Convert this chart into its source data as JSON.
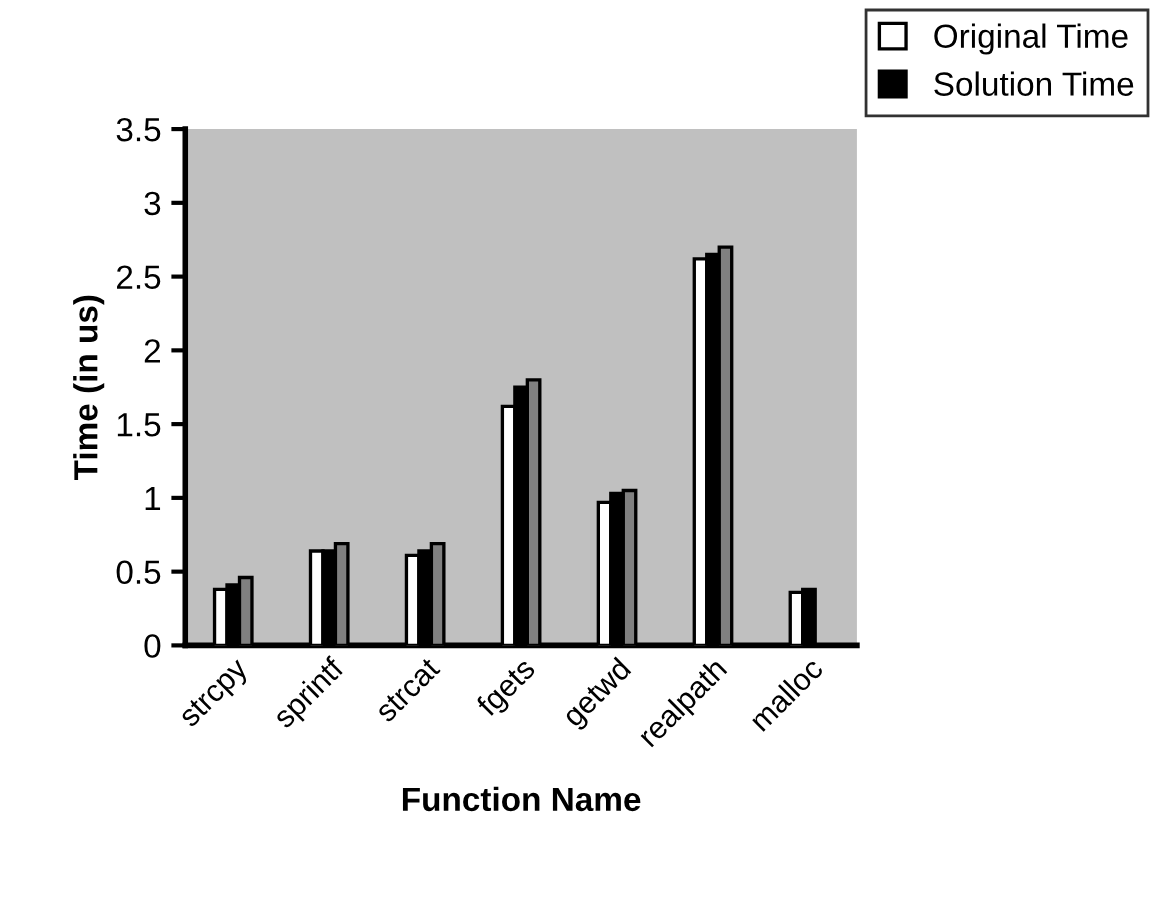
{
  "chart_data": {
    "type": "bar",
    "xlabel": "Function Name",
    "ylabel": "Time (in us)",
    "categories": [
      "strcpy",
      "sprintf",
      "strcat",
      "fgets",
      "getwd",
      "realpath",
      "malloc"
    ],
    "series": [
      {
        "name": "Original Time",
        "color": "#ffffff",
        "values": [
          0.38,
          0.64,
          0.61,
          1.62,
          0.97,
          2.62,
          0.36
        ]
      },
      {
        "name": "Solution Time",
        "color": "#000000",
        "values": [
          0.41,
          0.64,
          0.64,
          1.75,
          1.03,
          2.65,
          0.38
        ]
      },
      {
        "color": "#808080",
        "values": [
          0.46,
          0.69,
          0.69,
          1.8,
          1.05,
          2.7,
          null
        ]
      }
    ],
    "ylim": [
      0,
      3.5
    ],
    "yticks": [
      0,
      0.5,
      1,
      1.5,
      2,
      2.5,
      3,
      3.5
    ],
    "grid": false,
    "legend": "top right"
  }
}
